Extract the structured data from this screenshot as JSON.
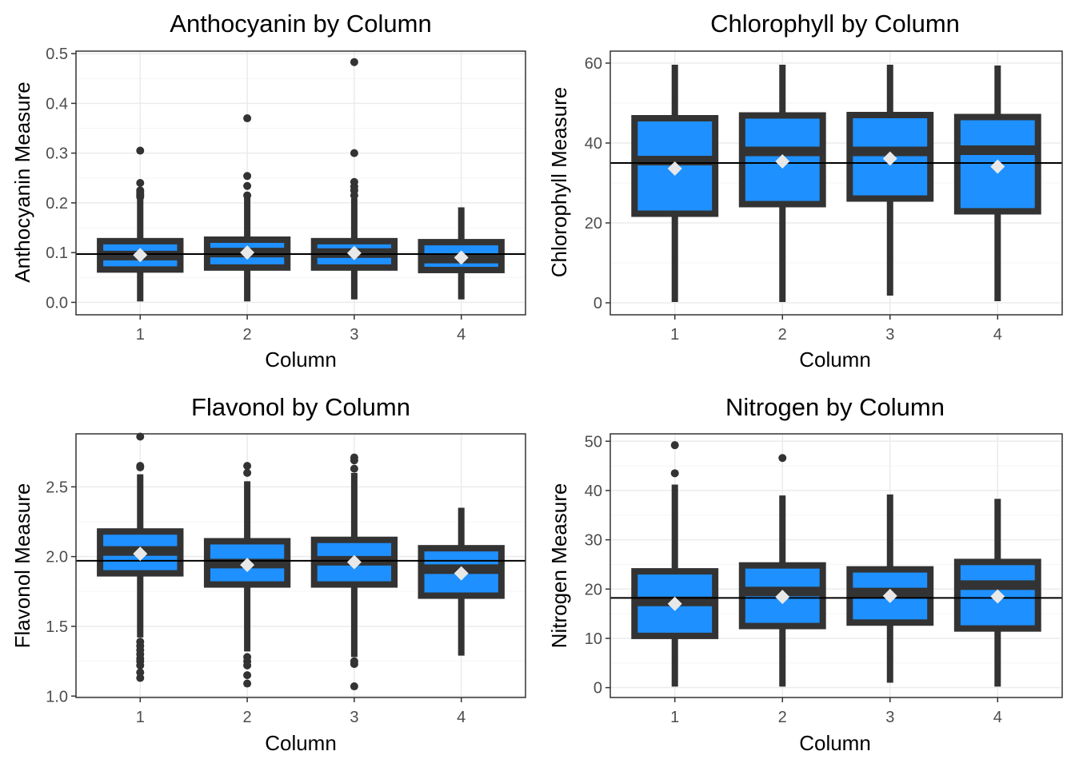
{
  "colors": {
    "box_fill": "#1e90ff",
    "box_line": "#333333",
    "mean_marker": "#e8e8e8",
    "reference_line": "#000000",
    "grid_major": "#ebebeb",
    "grid_minor": "#f5f5f5",
    "panel_border": "#333333"
  },
  "chart_data": [
    {
      "type": "box",
      "title": "Anthocyanin by Column",
      "xlabel": "Column",
      "ylabel": "Anthocyanin Measure",
      "categories": [
        "1",
        "2",
        "3",
        "4"
      ],
      "ylim": [
        -0.025,
        0.505
      ],
      "yticks": [
        0.0,
        0.1,
        0.2,
        0.3,
        0.4,
        0.5
      ],
      "ytick_labels": [
        "0.0",
        "0.1",
        "0.2",
        "0.3",
        "0.4",
        "0.5"
      ],
      "reference_line": 0.097,
      "boxes": [
        {
          "min": 0.002,
          "q1": 0.066,
          "median": 0.094,
          "q3": 0.123,
          "max": 0.209,
          "mean": 0.095,
          "outliers": [
            0.212,
            0.215,
            0.218,
            0.222,
            0.225,
            0.24,
            0.305
          ]
        },
        {
          "min": 0.002,
          "q1": 0.07,
          "median": 0.1,
          "q3": 0.126,
          "max": 0.21,
          "mean": 0.1,
          "outliers": [
            0.215,
            0.234,
            0.254,
            0.37
          ]
        },
        {
          "min": 0.006,
          "q1": 0.07,
          "median": 0.099,
          "q3": 0.123,
          "max": 0.209,
          "mean": 0.099,
          "outliers": [
            0.215,
            0.225,
            0.233,
            0.242,
            0.3,
            0.483
          ]
        },
        {
          "min": 0.006,
          "q1": 0.065,
          "median": 0.088,
          "q3": 0.121,
          "max": 0.191,
          "mean": 0.09,
          "outliers": []
        }
      ]
    },
    {
      "type": "box",
      "title": "Chlorophyll by Column",
      "xlabel": "Column",
      "ylabel": "Chlorophyll Measure",
      "categories": [
        "1",
        "2",
        "3",
        "4"
      ],
      "ylim": [
        -3,
        63
      ],
      "yticks": [
        0,
        20,
        40,
        60
      ],
      "ytick_labels": [
        "0",
        "20",
        "40",
        "60"
      ],
      "reference_line": 35,
      "boxes": [
        {
          "min": 0.2,
          "q1": 22.3,
          "median": 35.6,
          "q3": 46.2,
          "max": 59.6,
          "mean": 33.6,
          "outliers": []
        },
        {
          "min": 0.2,
          "q1": 24.7,
          "median": 37.9,
          "q3": 46.9,
          "max": 59.6,
          "mean": 35.4,
          "outliers": []
        },
        {
          "min": 1.8,
          "q1": 26.1,
          "median": 37.9,
          "q3": 47.0,
          "max": 59.6,
          "mean": 36.1,
          "outliers": []
        },
        {
          "min": 0.4,
          "q1": 22.9,
          "median": 38.2,
          "q3": 46.5,
          "max": 59.4,
          "mean": 34.1,
          "outliers": []
        }
      ]
    },
    {
      "type": "box",
      "title": "Flavonol by Column",
      "xlabel": "Column",
      "ylabel": "Flavonol Measure",
      "categories": [
        "1",
        "2",
        "3",
        "4"
      ],
      "ylim": [
        0.99,
        2.88
      ],
      "yticks": [
        1.0,
        1.5,
        2.0,
        2.5
      ],
      "ytick_labels": [
        "1.0",
        "1.5",
        "2.0",
        "2.5"
      ],
      "reference_line": 1.97,
      "boxes": [
        {
          "min": 1.42,
          "q1": 1.88,
          "median": 2.04,
          "q3": 2.18,
          "max": 2.59,
          "mean": 2.02,
          "outliers": [
            1.13,
            1.17,
            1.22,
            1.25,
            1.27,
            1.3,
            1.33,
            1.36,
            1.39,
            2.64,
            2.65,
            2.86
          ]
        },
        {
          "min": 1.32,
          "q1": 1.8,
          "median": 1.95,
          "q3": 2.11,
          "max": 2.54,
          "mean": 1.94,
          "outliers": [
            1.09,
            1.15,
            1.22,
            1.25,
            1.28,
            2.6,
            2.65
          ]
        },
        {
          "min": 1.28,
          "q1": 1.8,
          "median": 1.97,
          "q3": 2.12,
          "max": 2.6,
          "mean": 1.96,
          "outliers": [
            1.07,
            1.23,
            1.25,
            2.63,
            2.69,
            2.71
          ]
        },
        {
          "min": 1.29,
          "q1": 1.72,
          "median": 1.91,
          "q3": 2.06,
          "max": 2.35,
          "mean": 1.88,
          "outliers": []
        }
      ]
    },
    {
      "type": "box",
      "title": "Nitrogen by Column",
      "xlabel": "Column",
      "ylabel": "Nitrogen Measure",
      "categories": [
        "1",
        "2",
        "3",
        "4"
      ],
      "ylim": [
        -2,
        51.5
      ],
      "yticks": [
        0,
        10,
        20,
        30,
        40,
        50
      ],
      "ytick_labels": [
        "0",
        "10",
        "20",
        "30",
        "40",
        "50"
      ],
      "reference_line": 18.2,
      "boxes": [
        {
          "min": 0.2,
          "q1": 10.5,
          "median": 17.5,
          "q3": 23.6,
          "max": 41.2,
          "mean": 17.0,
          "outliers": [
            43.5,
            49.2
          ]
        },
        {
          "min": 0.2,
          "q1": 12.5,
          "median": 19.5,
          "q3": 24.8,
          "max": 39.0,
          "mean": 18.4,
          "outliers": [
            46.6
          ]
        },
        {
          "min": 1.0,
          "q1": 13.2,
          "median": 19.3,
          "q3": 24.0,
          "max": 39.2,
          "mean": 18.6,
          "outliers": []
        },
        {
          "min": 0.2,
          "q1": 12.0,
          "median": 20.8,
          "q3": 25.5,
          "max": 38.3,
          "mean": 18.5,
          "outliers": []
        }
      ]
    }
  ]
}
